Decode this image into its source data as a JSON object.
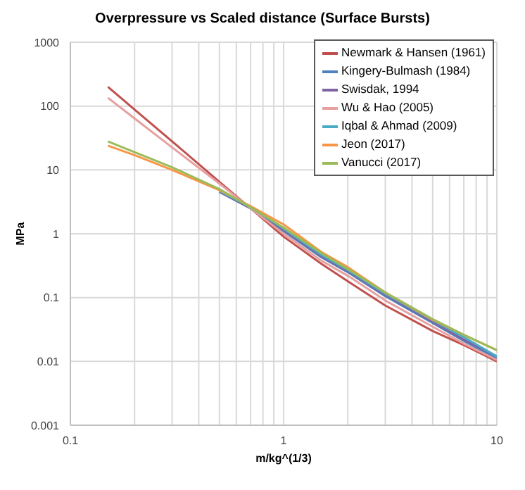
{
  "chart_data": {
    "type": "line",
    "title": "Overpressure  vs Scaled distance (Surface Bursts)",
    "xlabel": "m/kg^(1/3)",
    "ylabel": "MPa",
    "log": "xy",
    "grid": true,
    "legend": "top right",
    "marker": "none",
    "line_style": "solid",
    "x": [
      0.15,
      0.2,
      0.3,
      0.5,
      0.7,
      1,
      1.5,
      2,
      3,
      5,
      7,
      10
    ],
    "xlim": [
      0.1,
      10
    ],
    "ylim": [
      0.001,
      1000
    ],
    "xticks": [
      0.1,
      {
        "value": 0.2,
        "label": null
      },
      {
        "value": 0.3,
        "label": null
      },
      {
        "value": 0.4,
        "label": null
      },
      {
        "value": 0.5,
        "label": null
      },
      {
        "value": 0.6,
        "label": null
      },
      {
        "value": 0.7,
        "label": null
      },
      {
        "value": 0.8,
        "label": null
      },
      {
        "value": 0.9,
        "label": null
      },
      1,
      {
        "value": 2,
        "label": null
      },
      {
        "value": 3,
        "label": null
      },
      {
        "value": 4,
        "label": null
      },
      {
        "value": 5,
        "label": null
      },
      {
        "value": 6,
        "label": null
      },
      {
        "value": 7,
        "label": null
      },
      {
        "value": 8,
        "label": null
      },
      {
        "value": 9,
        "label": null
      },
      10
    ],
    "yticks": [
      0.001,
      0.01,
      0.1,
      1,
      10,
      100,
      1000
    ],
    "series": [
      {
        "name": "Newmark & Hansen (1961)",
        "color": "#c0504d",
        "values": [
          200,
          88,
          28,
          6.5,
          2.5,
          0.9,
          0.34,
          0.18,
          0.075,
          0.03,
          0.018,
          0.01
        ]
      },
      {
        "name": "Kingery-Bulmash (1984)",
        "color": "#4f81bd",
        "values": [
          null,
          null,
          null,
          4.5,
          2.5,
          1.1,
          0.43,
          0.25,
          0.105,
          0.04,
          0.021,
          0.011
        ]
      },
      {
        "name": "Swisdak, 1994",
        "color": "#8064a2",
        "values": [
          null,
          null,
          null,
          4.6,
          2.5,
          1.15,
          0.45,
          0.26,
          0.11,
          0.042,
          0.022,
          0.012
        ]
      },
      {
        "name": "Wu & Hao (2005)",
        "color": "#e6a0a0",
        "values": [
          135,
          64,
          22.5,
          6.1,
          2.5,
          1.0,
          0.38,
          0.22,
          0.09,
          0.035,
          0.019,
          0.0105
        ]
      },
      {
        "name": "Iqbal & Ahmad (2009)",
        "color": "#4bacc6",
        "values": [
          null,
          null,
          null,
          4.7,
          2.6,
          1.2,
          0.47,
          0.27,
          0.115,
          0.044,
          0.024,
          0.012
        ]
      },
      {
        "name": "Jeon (2017)",
        "color": "#f79646",
        "values": [
          24,
          17,
          10,
          4.8,
          2.7,
          1.4,
          0.52,
          0.3,
          0.12,
          0.045,
          0.026,
          0.015
        ]
      },
      {
        "name": "Vanucci (2017)",
        "color": "#9bbb59",
        "values": [
          28,
          19,
          11,
          5,
          2.6,
          1.25,
          0.5,
          0.28,
          0.12,
          0.046,
          0.026,
          0.015
        ]
      }
    ]
  }
}
